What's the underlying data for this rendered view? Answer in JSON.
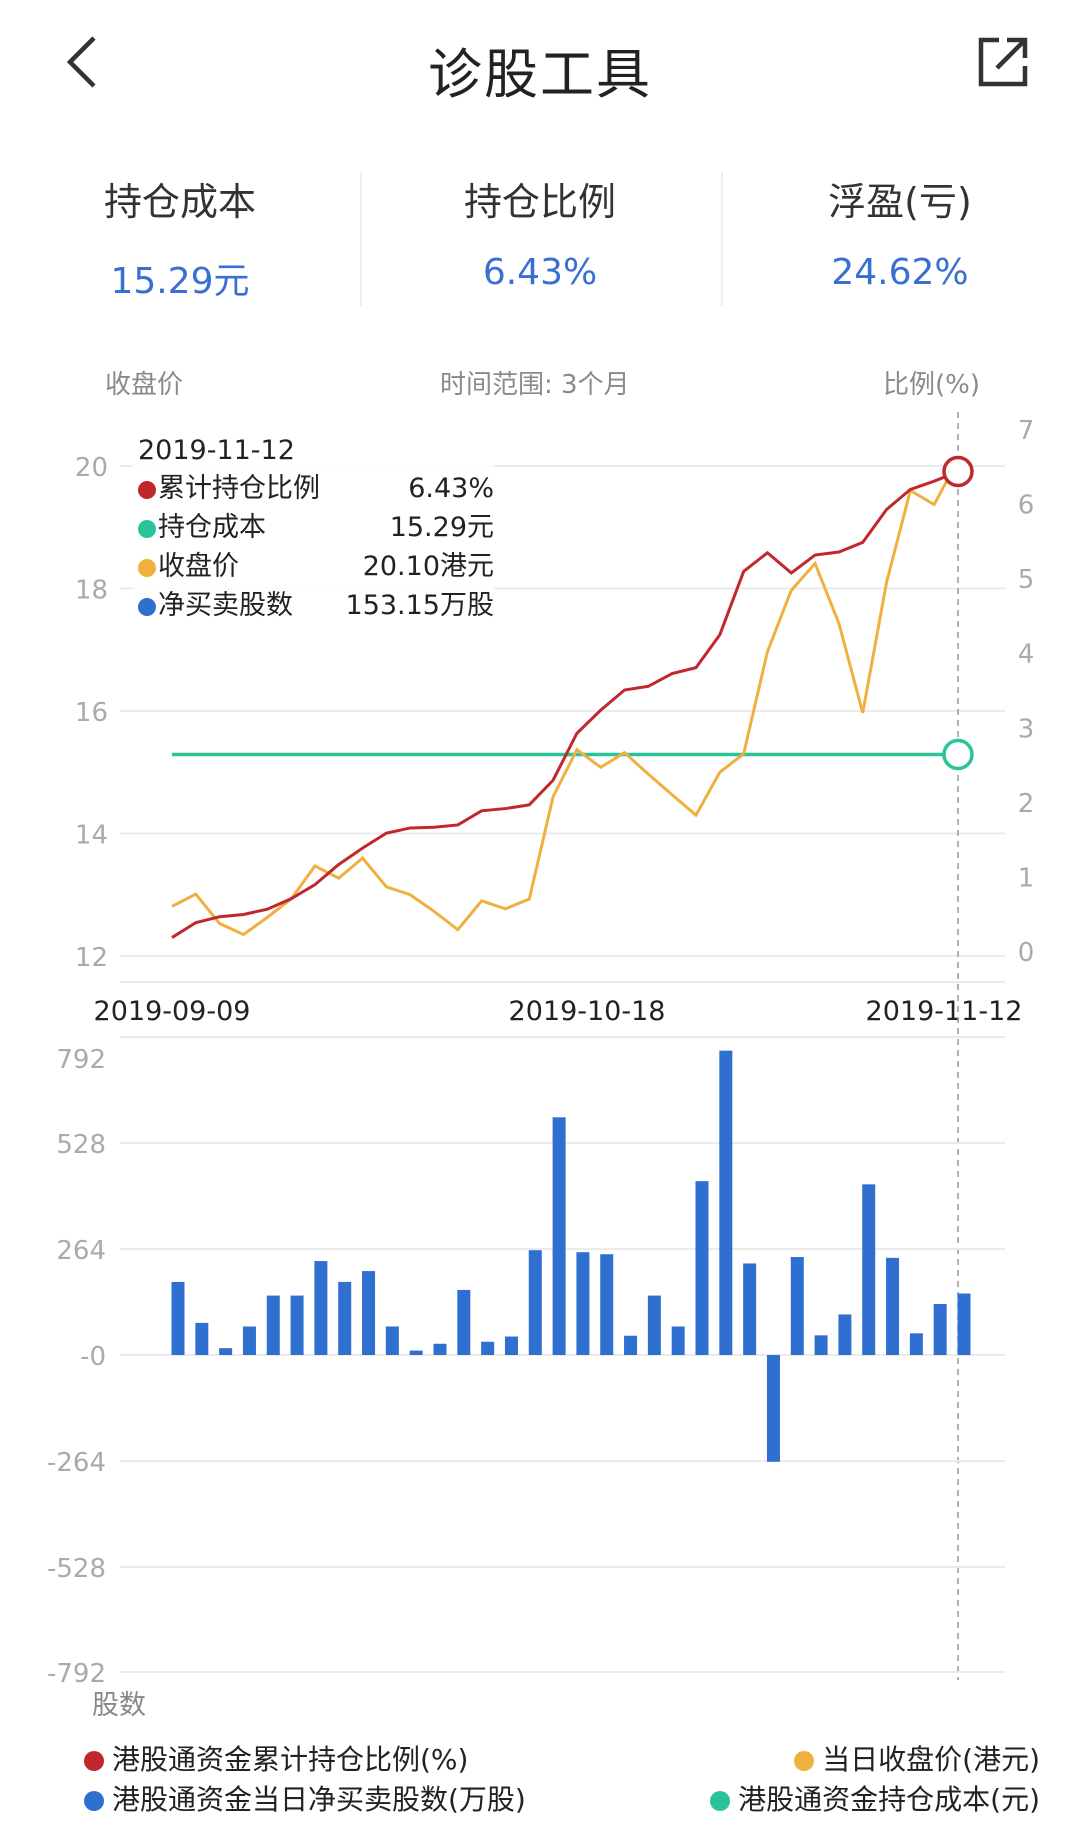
{
  "header": {
    "title": "诊股工具",
    "back_icon": "chevron-left-icon",
    "share_icon": "share-icon"
  },
  "stats": [
    {
      "label": "持仓成本",
      "value": "15.29元"
    },
    {
      "label": "持仓比例",
      "value": "6.43%"
    },
    {
      "label": "浮盈(亏)",
      "value": "24.62%"
    }
  ],
  "chart_header": {
    "left_axis": "收盘价",
    "range": "时间范围: 3个月",
    "right_axis": "比例(%)"
  },
  "tooltip": {
    "date": "2019-11-12",
    "rows": [
      {
        "label": "累计持仓比例",
        "value": "6.43%",
        "color": "#c0282e"
      },
      {
        "label": "持仓成本",
        "value": "15.29元",
        "color": "#2bc49a"
      },
      {
        "label": "收盘价",
        "value": "20.10港元",
        "color": "#f0b040"
      },
      {
        "label": "净买卖股数",
        "value": "153.15万股",
        "color": "#2f6fd0"
      }
    ]
  },
  "colors": {
    "ratio": "#c0282e",
    "cost": "#2bc49a",
    "price": "#f0b040",
    "volume": "#2f6fd0",
    "grid": "#ebebeb",
    "tick": "#aaaaaa"
  },
  "chart_data": [
    {
      "type": "line",
      "title": "",
      "xlabel": "",
      "ylabel": "收盘价",
      "y2label": "比例(%)",
      "ylim": [
        12,
        20
      ],
      "y2lim": [
        0,
        7
      ],
      "yticks": [
        "20",
        "18",
        "16",
        "14",
        "12"
      ],
      "y2ticks": [
        "7",
        "6",
        "5",
        "4",
        "3",
        "2",
        "1",
        "0"
      ],
      "xticks": [
        "2019-09-09",
        "2019-10-18",
        "2019-11-12"
      ],
      "series": [
        {
          "name": "当日收盘价(港元)",
          "axis": "left",
          "values": [
            12.81,
            13.01,
            12.53,
            12.35,
            12.63,
            12.93,
            13.47,
            13.27,
            13.6,
            13.13,
            13.0,
            12.73,
            12.43,
            12.9,
            12.77,
            12.93,
            14.6,
            15.37,
            15.08,
            15.32,
            14.97,
            14.63,
            14.3,
            15.0,
            15.3,
            16.97,
            17.97,
            18.41,
            17.43,
            15.97,
            18.1,
            19.6,
            19.37,
            20.1
          ]
        },
        {
          "name": "港股通资金累计持仓比例(%)",
          "axis": "right",
          "values": [
            0.18,
            0.38,
            0.46,
            0.49,
            0.56,
            0.7,
            0.89,
            1.16,
            1.38,
            1.58,
            1.65,
            1.66,
            1.69,
            1.88,
            1.91,
            1.96,
            2.29,
            2.92,
            3.23,
            3.5,
            3.55,
            3.72,
            3.8,
            4.24,
            5.09,
            5.34,
            5.07,
            5.31,
            5.35,
            5.48,
            5.92,
            6.19,
            6.3,
            6.43
          ]
        },
        {
          "name": "港股通资金持仓成本(元)",
          "axis": "left",
          "constant": 15.29
        }
      ],
      "grid": true
    },
    {
      "type": "bar",
      "ylabel": "股数",
      "ylim": [
        -792,
        792
      ],
      "yticks": [
        "792",
        "528",
        "264",
        "-0",
        "-264",
        "-528",
        "-792"
      ],
      "series": [
        {
          "name": "港股通资金当日净买卖股数(万股)",
          "values": [
            182,
            80,
            17,
            71,
            148,
            148,
            234,
            182,
            209,
            71,
            11,
            28,
            162,
            33,
            46,
            261,
            592,
            256,
            251,
            48,
            148,
            71,
            433,
            758,
            228,
            -266,
            244,
            49,
            101,
            425,
            242,
            54,
            127,
            153.15
          ]
        }
      ],
      "grid": true
    }
  ],
  "legend": [
    {
      "label": "港股通资金累计持仓比例(%)",
      "color": "#c0282e"
    },
    {
      "label": "当日收盘价(港元)",
      "color": "#f0b040"
    },
    {
      "label": "港股通资金当日净买卖股数(万股)",
      "color": "#2f6fd0"
    },
    {
      "label": "港股通资金持仓成本(元)",
      "color": "#2bc49a"
    }
  ]
}
